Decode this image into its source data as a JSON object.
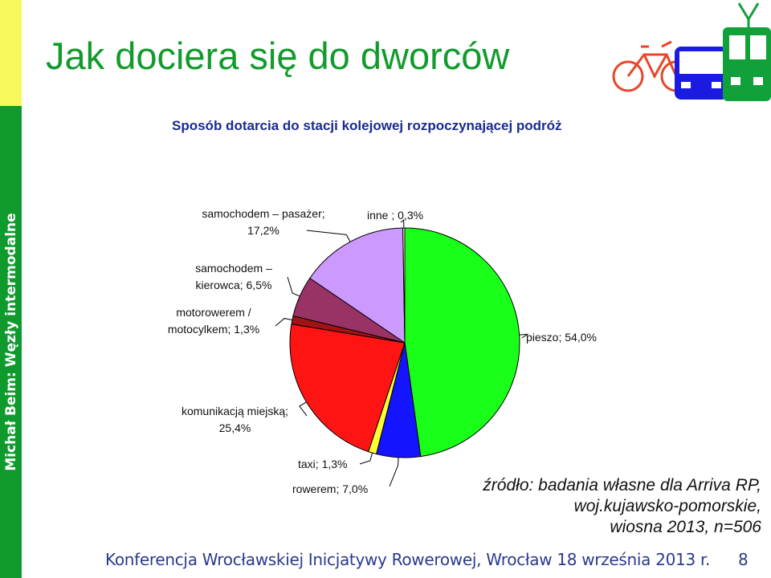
{
  "sidebar": {
    "text": "Michał Beim: Węzły intermodalne"
  },
  "title": "Jak dociera się do dworców",
  "footer": {
    "text": "Konferencja Wrocławskiej Inicjatywy Rowerowej, Wrocław 18 września 2013 r.",
    "page": "8"
  },
  "source": {
    "line1": "źródło: badania własne dla Arriva RP,",
    "line2": "woj.kujawsko-pomorskie,",
    "line3": "wiosna 2013, n=506"
  },
  "logo": {
    "icons": [
      "bicycle-icon",
      "bus-icon",
      "tram-icon"
    ]
  },
  "chart_data": {
    "type": "pie",
    "title": "Sposób dotarcia do stacji kolejowej rozpoczynającej podróż",
    "slices": [
      {
        "label": "pieszo; 54,0%",
        "value": 54.0,
        "color": "#19ff19"
      },
      {
        "label": "rowerem; 7,0%",
        "value": 7.0,
        "color": "#1414ff"
      },
      {
        "label": "taxi; 1,3%",
        "value": 1.3,
        "color": "#ffff33"
      },
      {
        "label": "komunikacją miejską; 25,4%",
        "value": 25.4,
        "color": "#ff1414"
      },
      {
        "label": "motorowerem / motocylkem; 1,3%",
        "value": 1.3,
        "color": "#a01414"
      },
      {
        "label": "samochodem – kierowca; 6,5%",
        "value": 6.5,
        "color": "#993366"
      },
      {
        "label": "samochodem – pasażer; 17,2%",
        "value": 17.2,
        "color": "#cc99ff"
      },
      {
        "label": "inne ; 0,3%",
        "value": 0.3,
        "color": "#ffffcc"
      }
    ],
    "label_lines": [
      [
        "samochodem – pasażer;",
        "17,2%"
      ],
      [
        "inne ; 0,3%"
      ],
      [
        "samochodem –",
        "kierowca; 6,5%"
      ],
      [
        "motorowerem /",
        "motocylkem; 1,3%"
      ],
      [
        "pieszo; 54,0%"
      ],
      [
        "komunikacją miejską;",
        "25,4%"
      ],
      [
        "taxi; 1,3%"
      ],
      [
        "rowerem; 7,0%"
      ]
    ]
  }
}
